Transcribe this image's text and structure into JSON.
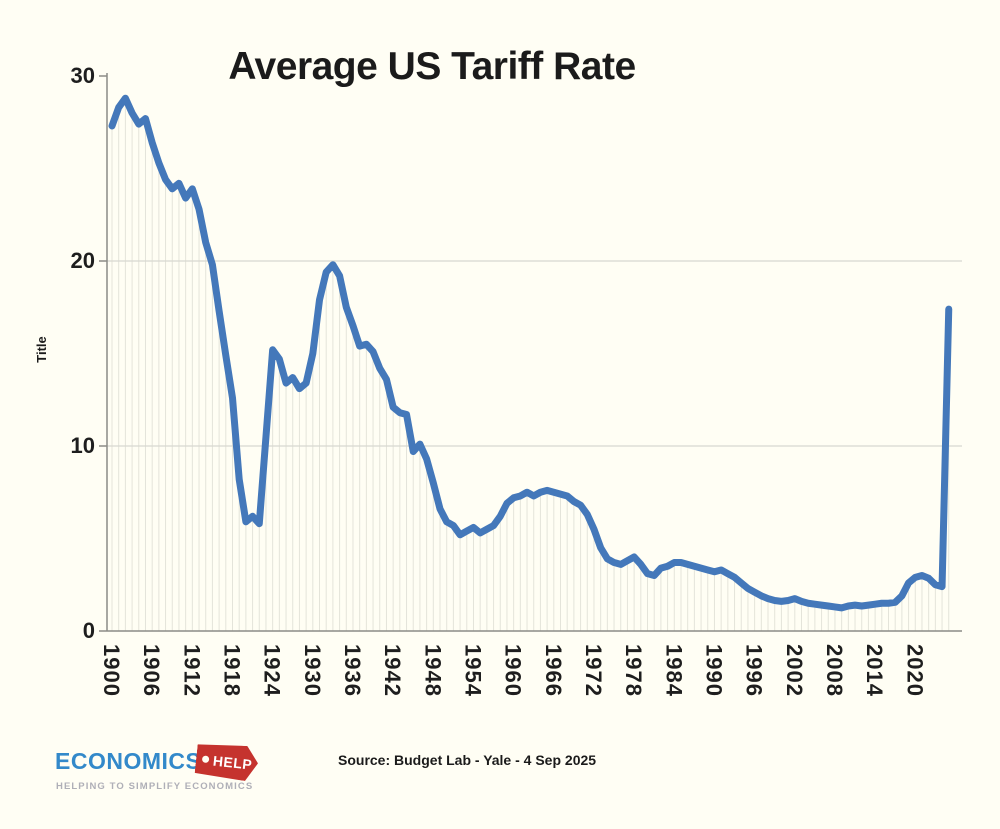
{
  "chart_title": "Average US Tariff Rate",
  "y_axis_title": "Title",
  "source_text": "Source: Budget Lab - Yale - 4 Sep 2025",
  "logo": {
    "brand": "ECONOMICS",
    "tag_label": "HELP",
    "tagline": "HELPING TO SIMPLIFY ECONOMICS",
    "brand_color": "#3389CA",
    "tag_color": "#C5332E",
    "tagline_color": "#AFAFB7"
  },
  "colors": {
    "background": "#FFFEF4",
    "line": "#4478BA",
    "gridline": "#D8D8D0",
    "dropline": "#E4E4DA",
    "axis": "#8C8C86",
    "text": "#1b1b1b"
  },
  "chart_data": {
    "type": "line",
    "title": "Average US Tariff Rate",
    "xlabel": "",
    "ylabel": "Title",
    "ylim": [
      0,
      30
    ],
    "yticks": [
      0,
      10,
      20,
      30
    ],
    "ytick_labels": [
      "0",
      "10",
      "20",
      "30"
    ],
    "grid_y": [
      10,
      20
    ],
    "xticks": [
      1900,
      1906,
      1912,
      1918,
      1924,
      1930,
      1936,
      1942,
      1948,
      1954,
      1960,
      1966,
      1972,
      1978,
      1984,
      1990,
      1996,
      2002,
      2008,
      2014,
      2020
    ],
    "legend": "none",
    "series": [
      {
        "name": "Average US tariff rate (%)",
        "x": [
          1900,
          1901,
          1902,
          1903,
          1904,
          1905,
          1906,
          1907,
          1908,
          1909,
          1910,
          1911,
          1912,
          1913,
          1914,
          1915,
          1916,
          1917,
          1918,
          1919,
          1920,
          1921,
          1922,
          1923,
          1924,
          1925,
          1926,
          1927,
          1928,
          1929,
          1930,
          1931,
          1932,
          1933,
          1934,
          1935,
          1936,
          1937,
          1938,
          1939,
          1940,
          1941,
          1942,
          1943,
          1944,
          1945,
          1946,
          1947,
          1948,
          1949,
          1950,
          1951,
          1952,
          1953,
          1954,
          1955,
          1956,
          1957,
          1958,
          1959,
          1960,
          1961,
          1962,
          1963,
          1964,
          1965,
          1966,
          1967,
          1968,
          1969,
          1970,
          1971,
          1972,
          1973,
          1974,
          1975,
          1976,
          1977,
          1978,
          1979,
          1980,
          1981,
          1982,
          1983,
          1984,
          1985,
          1986,
          1987,
          1988,
          1989,
          1990,
          1991,
          1992,
          1993,
          1994,
          1995,
          1996,
          1997,
          1998,
          1999,
          2000,
          2001,
          2002,
          2003,
          2004,
          2005,
          2006,
          2007,
          2008,
          2009,
          2010,
          2011,
          2012,
          2013,
          2014,
          2015,
          2016,
          2017,
          2018,
          2019,
          2020,
          2021,
          2022,
          2023,
          2024,
          2025
        ],
        "values": [
          27.3,
          28.3,
          28.8,
          28.0,
          27.4,
          27.7,
          26.4,
          25.3,
          24.4,
          23.9,
          24.2,
          23.4,
          23.9,
          22.8,
          21.0,
          19.8,
          17.3,
          14.9,
          12.6,
          8.2,
          5.9,
          6.2,
          5.8,
          10.5,
          15.2,
          14.7,
          13.4,
          13.7,
          13.1,
          13.4,
          15.0,
          17.9,
          19.4,
          19.8,
          19.2,
          17.5,
          16.5,
          15.4,
          15.5,
          15.1,
          14.2,
          13.6,
          12.1,
          11.8,
          11.7,
          9.7,
          10.1,
          9.3,
          8.0,
          6.6,
          5.9,
          5.7,
          5.2,
          5.4,
          5.6,
          5.3,
          5.5,
          5.7,
          6.2,
          6.9,
          7.2,
          7.3,
          7.5,
          7.3,
          7.5,
          7.6,
          7.5,
          7.4,
          7.3,
          7.0,
          6.8,
          6.3,
          5.5,
          4.5,
          3.9,
          3.7,
          3.6,
          3.8,
          4.0,
          3.6,
          3.1,
          3.0,
          3.4,
          3.5,
          3.7,
          3.7,
          3.6,
          3.5,
          3.4,
          3.3,
          3.2,
          3.3,
          3.1,
          2.9,
          2.6,
          2.3,
          2.1,
          1.9,
          1.75,
          1.65,
          1.6,
          1.65,
          1.75,
          1.6,
          1.5,
          1.45,
          1.4,
          1.35,
          1.3,
          1.25,
          1.35,
          1.4,
          1.35,
          1.4,
          1.45,
          1.5,
          1.5,
          1.55,
          1.9,
          2.6,
          2.9,
          3.0,
          2.85,
          2.5,
          2.4,
          17.4
        ]
      }
    ]
  }
}
